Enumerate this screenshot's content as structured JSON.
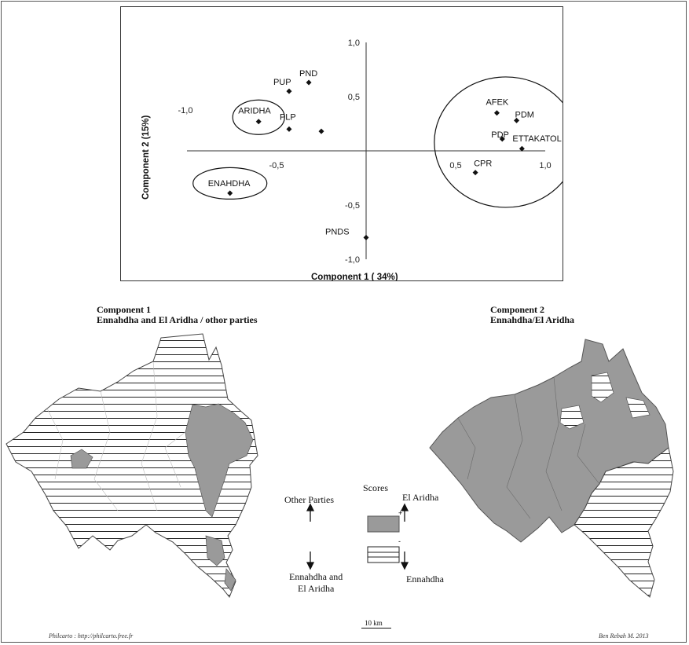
{
  "chart_data": {
    "type": "scatter",
    "xlabel": "Component 1 ( 34%)",
    "ylabel": "Component 2 (15%)",
    "xlim": [
      -1.0,
      1.0
    ],
    "ylim": [
      -1.0,
      1.0
    ],
    "x_tick_labels": [
      "-1,0",
      "-0,5",
      "0,5",
      "1,0"
    ],
    "y_tick_labels": [
      "1,0",
      "0,5",
      "-0,5",
      "-1,0"
    ],
    "points": [
      {
        "label": "PND",
        "x": -0.32,
        "y": 0.63
      },
      {
        "label": "PUP",
        "x": -0.43,
        "y": 0.55
      },
      {
        "label": "ARIDHA",
        "x": -0.6,
        "y": 0.27
      },
      {
        "label": "PLP",
        "x": -0.43,
        "y": 0.2
      },
      {
        "label": "",
        "x": -0.25,
        "y": 0.18
      },
      {
        "label": "ENAHDHA",
        "x": -0.76,
        "y": -0.39
      },
      {
        "label": "PNDS",
        "x": 0.0,
        "y": -0.8
      },
      {
        "label": "AFEK",
        "x": 0.73,
        "y": 0.35
      },
      {
        "label": "PDM",
        "x": 0.84,
        "y": 0.28
      },
      {
        "label": "PDP",
        "x": 0.76,
        "y": 0.11
      },
      {
        "label": "ETTAKATOL",
        "x": 0.87,
        "y": 0.02
      },
      {
        "label": "CPR",
        "x": 0.61,
        "y": -0.2
      }
    ],
    "groups_circled": [
      "ARIDHA",
      "ENAHDHA",
      "AFEK PDM PDP ETTAKATOL CPR"
    ]
  },
  "maps": {
    "left": {
      "title_line1": "Component 1",
      "title_line2": "Ennahdha and El Aridha / othor parties"
    },
    "right": {
      "title_line1": "Component 2",
      "title_line2": "Ennahdha/El Aridha"
    }
  },
  "legend": {
    "title": "Scores",
    "plus": "+",
    "minus": "-",
    "left_top": "Other Parties",
    "left_bottom_line1": "Ennahdha and",
    "left_bottom_line2": "El Aridha",
    "right_top": "El Aridha",
    "right_bottom": "Ennahdha",
    "fill_positive": "#9a9a9a",
    "fill_negative": "hatched"
  },
  "scale": "10 km",
  "footer": {
    "left": "Philcarto : http://philcarto.free.fr",
    "right": "Ben Rebah M. 2013"
  }
}
